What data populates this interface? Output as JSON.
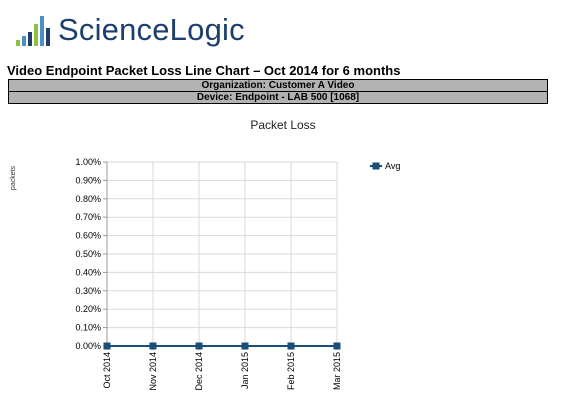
{
  "header": {
    "logo_text": "ScienceLogic",
    "report_title": "Video Endpoint Packet Loss Line Chart – Oct 2014 for 6 months",
    "organization": "Organization: Customer A Video",
    "device": "Device: Endpoint - LAB 500 [1068]"
  },
  "colors": {
    "series": "#1b4f7a",
    "logo_text": "#1d3e6e",
    "logo_bars": [
      "#8fc140",
      "#4a90c6",
      "#1d3e6e"
    ],
    "gridline": "#d9d9d9",
    "info_band": "#b3b3b3"
  },
  "chart_data": {
    "type": "line",
    "title": "Packet Loss",
    "ylabel": "packets",
    "xlabel": "",
    "categories": [
      "Oct 2014",
      "Nov 2014",
      "Dec 2014",
      "Jan 2015",
      "Feb 2015",
      "Mar 2015"
    ],
    "y_ticks": [
      "0.00%",
      "0.10%",
      "0.20%",
      "0.30%",
      "0.40%",
      "0.50%",
      "0.60%",
      "0.70%",
      "0.80%",
      "0.90%",
      "1.00%"
    ],
    "ylim": [
      0,
      1
    ],
    "grid": true,
    "legend_position": "top-right",
    "series": [
      {
        "name": "Avg",
        "values": [
          0,
          0,
          0,
          0,
          0,
          0
        ]
      }
    ]
  }
}
